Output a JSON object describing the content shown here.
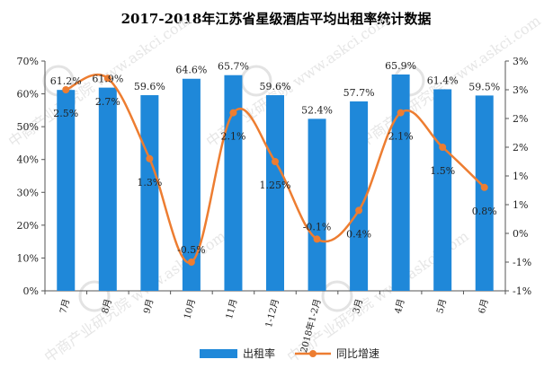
{
  "chart_data": {
    "type": "bar",
    "title": "2017-2018年江苏省星级酒店平均出租率统计数据",
    "categories": [
      "7月",
      "8月",
      "9月",
      "10月",
      "11月",
      "1-12月",
      "2018年1-2月",
      "3月",
      "4月",
      "5月",
      "6月"
    ],
    "series": [
      {
        "name": "出租率",
        "type": "bar",
        "axis": "left",
        "color": "#1f88d9",
        "values": [
          61.2,
          61.9,
          59.6,
          64.6,
          65.7,
          59.6,
          52.4,
          57.7,
          65.9,
          61.4,
          59.5
        ],
        "labels": [
          "61.2%",
          "61.9%",
          "59.6%",
          "64.6%",
          "65.7%",
          "59.6%",
          "52.4%",
          "57.7%",
          "65.9%",
          "61.4%",
          "59.5%"
        ]
      },
      {
        "name": "同比增速",
        "type": "line",
        "axis": "right",
        "color": "#ed7d31",
        "smooth": true,
        "values": [
          2.5,
          2.7,
          1.3,
          -0.5,
          2.1,
          1.25,
          -0.1,
          0.4,
          2.1,
          1.5,
          0.8
        ],
        "labels": [
          "2.5%",
          "2.7%",
          "1.3%",
          "-0.5%",
          "2.1%",
          "1.25%",
          "-0.1%",
          "0.4%",
          "2.1%",
          "1.5%",
          "0.8%"
        ]
      }
    ],
    "y_left": {
      "ylim": [
        0,
        70
      ],
      "ticks": [
        0,
        10,
        20,
        30,
        40,
        50,
        60,
        70
      ],
      "tick_labels": [
        "0%",
        "10%",
        "20%",
        "30%",
        "40%",
        "50%",
        "60%",
        "70%"
      ]
    },
    "y_right": {
      "ylim": [
        -1,
        3
      ],
      "ticks": [
        -1,
        -0.5,
        0,
        0.5,
        1,
        1.5,
        2,
        2.5,
        3
      ],
      "tick_labels": [
        "-1%",
        "-1%",
        "0%",
        "1%",
        "1%",
        "2%",
        "2%",
        "3%",
        "3%"
      ]
    },
    "grid": false,
    "legend": {
      "position": "bottom"
    },
    "watermark": "中商产业研究院 www.askci.com"
  }
}
